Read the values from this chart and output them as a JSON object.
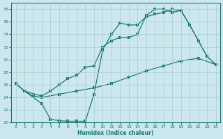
{
  "xlabel": "Humidex (Indice chaleur)",
  "xlim": [
    -0.5,
    23.5
  ],
  "ylim": [
    20,
    39
  ],
  "yticks": [
    20,
    22,
    24,
    26,
    28,
    30,
    32,
    34,
    36,
    38
  ],
  "xticks": [
    0,
    1,
    2,
    3,
    4,
    5,
    6,
    7,
    8,
    9,
    10,
    11,
    12,
    13,
    14,
    15,
    16,
    17,
    18,
    19,
    20,
    21,
    22,
    23
  ],
  "bg_color": "#cce8ee",
  "grid_color": "#aacccc",
  "line_color": "#1a7a6e",
  "line1_x": [
    0,
    1,
    2,
    3,
    5,
    7,
    9,
    11,
    13,
    15,
    17,
    19,
    21,
    23
  ],
  "line1_y": [
    26.2,
    25.0,
    24.2,
    24.0,
    24.5,
    25.0,
    25.5,
    26.2,
    27.2,
    28.2,
    29.0,
    29.8,
    30.2,
    29.2
  ],
  "line2_x": [
    0,
    1,
    3,
    4,
    5,
    6,
    7,
    8,
    9,
    10,
    11,
    12,
    13,
    14,
    15,
    16,
    17,
    18,
    19,
    20,
    21,
    22,
    23
  ],
  "line2_y": [
    26.2,
    25.0,
    23.0,
    20.5,
    20.3,
    20.2,
    20.2,
    20.2,
    24.5,
    31.5,
    34.0,
    35.8,
    35.5,
    35.5,
    36.8,
    37.2,
    37.5,
    38.0,
    37.8,
    35.5,
    33.0,
    30.5,
    29.2
  ],
  "line3_x": [
    0,
    1,
    3,
    4,
    5,
    6,
    7,
    8,
    9,
    10,
    11,
    12,
    13,
    14,
    15,
    16,
    17,
    18,
    19,
    20,
    21,
    22,
    23
  ],
  "line3_y": [
    26.2,
    25.0,
    24.2,
    25.0,
    26.0,
    27.0,
    27.5,
    28.8,
    29.0,
    32.0,
    33.0,
    33.5,
    33.5,
    34.0,
    37.0,
    38.0,
    38.0,
    37.5,
    37.8,
    35.5,
    33.0,
    30.5,
    29.2
  ]
}
